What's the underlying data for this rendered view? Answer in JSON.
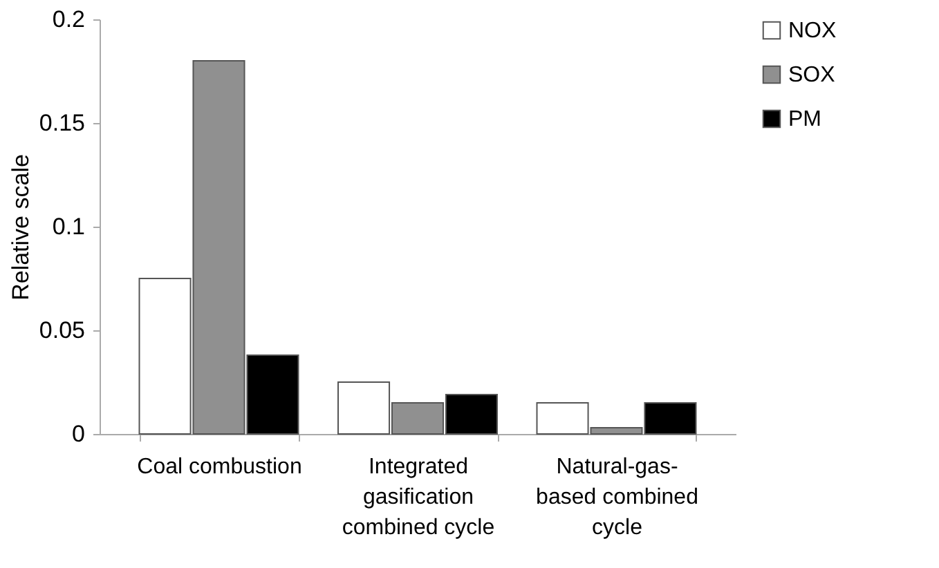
{
  "chart_data": {
    "type": "bar",
    "ylabel": "Relative scale",
    "categories": [
      "Coal combustion",
      "Integrated gasification combined cycle",
      "Natural-gas-based combined cycle"
    ],
    "series": [
      {
        "name": "NOX",
        "color": "#ffffff",
        "values": [
          0.075,
          0.025,
          0.015
        ]
      },
      {
        "name": "SOX",
        "color": "#909090",
        "values": [
          0.18,
          0.015,
          0.003
        ]
      },
      {
        "name": "PM",
        "color": "#000000",
        "values": [
          0.038,
          0.019,
          0.015
        ]
      }
    ],
    "ylim": [
      0,
      0.2
    ],
    "yticks": [
      0,
      0.05,
      0.1,
      0.15,
      0.2
    ],
    "grid": false,
    "legend": "right"
  }
}
